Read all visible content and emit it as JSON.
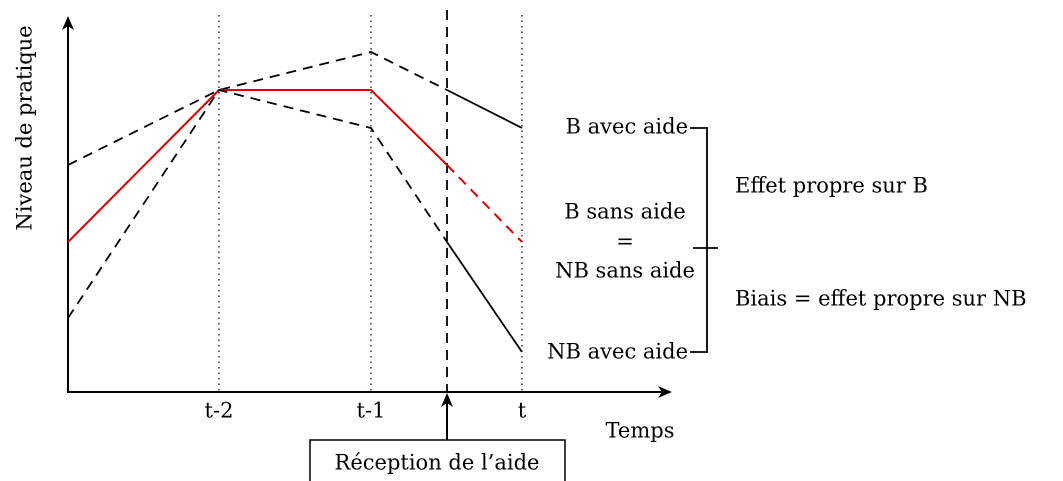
{
  "axes": {
    "y_label": "Niveau de pratique",
    "x_label": "Temps",
    "x_ticks": [
      "t-2",
      "t-1",
      "t"
    ]
  },
  "labels": {
    "b_avec": "B avec aide",
    "b_sans": "B sans aide",
    "equals": "=",
    "nb_sans": "NB sans aide",
    "nb_avec": "NB avec aide"
  },
  "brackets": {
    "upper": "Effet propre sur B",
    "lower": "Biais = effet propre sur NB"
  },
  "event": "Réception de l’aide"
}
